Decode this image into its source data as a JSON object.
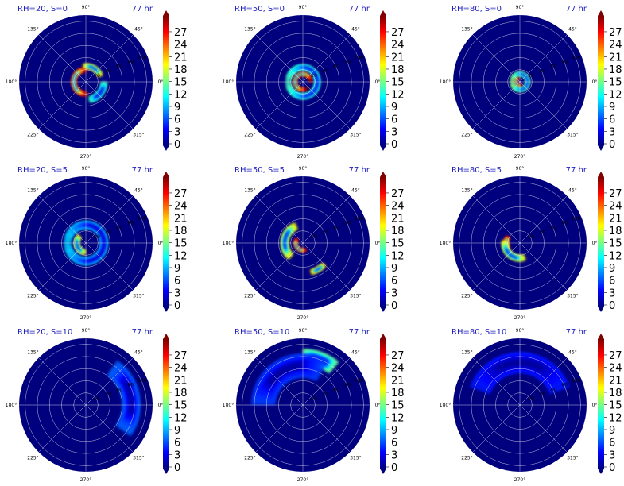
{
  "figure": {
    "colorbar": {
      "ticks": [
        "0",
        "3",
        "6",
        "9",
        "12",
        "15",
        "18",
        "21",
        "24",
        "27"
      ],
      "stops": [
        "#00007f",
        "#0000ff",
        "#007fff",
        "#00ffff",
        "#7fff7f",
        "#ffff00",
        "#ff7f00",
        "#ff0000",
        "#7f0000"
      ]
    },
    "angle_labels": [
      "0°",
      "45°",
      "90°",
      "135°",
      "180°",
      "225°",
      "270°",
      "315°"
    ],
    "colors": {
      "title": "#1f1fbf",
      "background": "#00007f",
      "grid": "#ffffff"
    }
  },
  "chart_data": [
    {
      "type": "heatmap",
      "projection": "polar",
      "title": "RH=20, S=0",
      "time_label": "77 hr",
      "radial_ticks": [
        "20",
        "40",
        "60",
        "80",
        "100"
      ],
      "rmax": 110,
      "color_range": [
        0,
        27
      ],
      "features": [
        {
          "r_center": 20,
          "r_width": 8,
          "theta_center": 180,
          "theta_width": 200,
          "intensity": 26
        },
        {
          "r_center": 26,
          "r_width": 8,
          "theta_center": 60,
          "theta_width": 80,
          "intensity": 18
        },
        {
          "r_center": 30,
          "r_width": 10,
          "theta_center": 320,
          "theta_width": 80,
          "intensity": 12
        }
      ]
    },
    {
      "type": "heatmap",
      "projection": "polar",
      "title": "RH=50, S=0",
      "time_label": "77 hr",
      "radial_ticks": [
        "20",
        "40",
        "60",
        "80",
        "100"
      ],
      "rmax": 110,
      "color_range": [
        0,
        27
      ],
      "features": [
        {
          "r_center": 13,
          "r_width": 6,
          "theta_center": 150,
          "theta_width": 320,
          "intensity": 27
        },
        {
          "r_center": 24,
          "r_width": 9,
          "theta_center": 0,
          "theta_width": 360,
          "intensity": 12
        }
      ]
    },
    {
      "type": "heatmap",
      "projection": "polar",
      "title": "RH=80, S=0",
      "time_label": "77 hr",
      "radial_ticks": [
        "20",
        "40",
        "60",
        "80",
        "100"
      ],
      "rmax": 110,
      "color_range": [
        0,
        27
      ],
      "features": [
        {
          "r_center": 7,
          "r_width": 5,
          "theta_center": 200,
          "theta_width": 200,
          "intensity": 26
        },
        {
          "r_center": 13,
          "r_width": 6,
          "theta_center": 0,
          "theta_width": 360,
          "intensity": 14
        }
      ]
    },
    {
      "type": "heatmap",
      "projection": "polar",
      "title": "RH=20, S=5",
      "time_label": "77 hr",
      "radial_ticks": [
        "20",
        "40",
        "60",
        "80",
        "100"
      ],
      "rmax": 110,
      "color_range": [
        0,
        27
      ],
      "features": [
        {
          "r_center": 15,
          "r_width": 8,
          "theta_center": 200,
          "theta_width": 140,
          "intensity": 17
        },
        {
          "r_center": 30,
          "r_width": 12,
          "theta_center": 0,
          "theta_width": 360,
          "intensity": 9
        }
      ]
    },
    {
      "type": "heatmap",
      "projection": "polar",
      "title": "RH=50, S=5",
      "time_label": "77 hr",
      "radial_ticks": [
        "20",
        "40",
        "60",
        "80",
        "100"
      ],
      "rmax": 110,
      "color_range": [
        0,
        27
      ],
      "features": [
        {
          "r_center": 12,
          "r_width": 5,
          "theta_center": 220,
          "theta_width": 160,
          "intensity": 25
        },
        {
          "r_center": 30,
          "r_width": 12,
          "theta_center": 170,
          "theta_width": 120,
          "intensity": 17
        },
        {
          "r_center": 50,
          "r_width": 8,
          "theta_center": 300,
          "theta_width": 30,
          "intensity": 19
        }
      ]
    },
    {
      "type": "heatmap",
      "projection": "polar",
      "title": "RH=80, S=5",
      "time_label": "77 hr",
      "radial_ticks": [
        "20",
        "40",
        "60",
        "80",
        "100"
      ],
      "rmax": 110,
      "color_range": [
        0,
        27
      ],
      "features": [
        {
          "r_center": 22,
          "r_width": 8,
          "theta_center": 180,
          "theta_width": 60,
          "intensity": 26
        },
        {
          "r_center": 25,
          "r_width": 10,
          "theta_center": 230,
          "theta_width": 120,
          "intensity": 17
        }
      ]
    },
    {
      "type": "heatmap",
      "projection": "polar",
      "title": "RH=20, S=10",
      "time_label": "77 hr",
      "radial_ticks": [
        "20",
        "40",
        "60",
        "80",
        "100"
      ],
      "rmax": 110,
      "color_range": [
        0,
        27
      ],
      "features": [
        {
          "r_center": 75,
          "r_width": 30,
          "theta_center": 10,
          "theta_width": 90,
          "intensity": 6
        }
      ]
    },
    {
      "type": "heatmap",
      "projection": "polar",
      "title": "RH=50, S=10",
      "time_label": "77 hr",
      "radial_ticks": [
        "20",
        "40",
        "60",
        "80",
        "100"
      ],
      "rmax": 110,
      "color_range": [
        0,
        27
      ],
      "features": [
        {
          "r_center": 80,
          "r_width": 25,
          "theta_center": 70,
          "theta_width": 40,
          "intensity": 13
        },
        {
          "r_center": 65,
          "r_width": 40,
          "theta_center": 120,
          "theta_width": 120,
          "intensity": 5
        }
      ]
    },
    {
      "type": "heatmap",
      "projection": "polar",
      "title": "RH=80, S=10",
      "time_label": "77 hr",
      "radial_ticks": [
        "20",
        "40",
        "60",
        "80",
        "100"
      ],
      "rmax": 110,
      "color_range": [
        0,
        27
      ],
      "features": [
        {
          "r_center": 70,
          "r_width": 35,
          "theta_center": 90,
          "theta_width": 140,
          "intensity": 4
        }
      ]
    }
  ]
}
